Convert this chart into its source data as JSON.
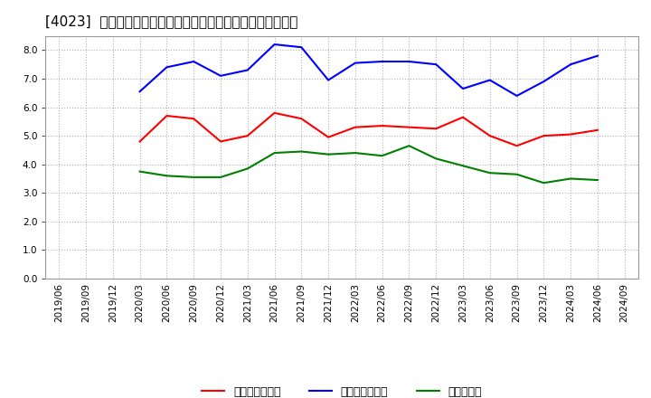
{
  "title": "[4023]  売上債権回転率、買入債務回転率、在庫回転率の推移",
  "x_labels": [
    "2019/06",
    "2019/09",
    "2019/12",
    "2020/03",
    "2020/06",
    "2020/09",
    "2020/12",
    "2021/03",
    "2021/06",
    "2021/09",
    "2021/12",
    "2022/03",
    "2022/06",
    "2022/09",
    "2022/12",
    "2023/03",
    "2023/06",
    "2023/09",
    "2023/12",
    "2024/03",
    "2024/06",
    "2024/09"
  ],
  "売上債権回転率": [
    null,
    null,
    null,
    4.8,
    5.7,
    5.6,
    4.8,
    5.0,
    5.8,
    5.6,
    4.95,
    5.3,
    5.35,
    5.3,
    5.25,
    5.65,
    5.0,
    4.65,
    5.0,
    5.05,
    5.2,
    null
  ],
  "買入債務回転率": [
    null,
    null,
    null,
    6.55,
    7.4,
    7.6,
    7.1,
    7.3,
    8.2,
    8.1,
    6.95,
    7.55,
    7.6,
    7.6,
    7.5,
    6.65,
    6.95,
    6.4,
    6.9,
    7.5,
    7.8,
    null
  ],
  "在庫回転率": [
    null,
    null,
    null,
    3.75,
    3.6,
    3.55,
    3.55,
    3.85,
    4.4,
    4.45,
    4.35,
    4.4,
    4.3,
    4.65,
    4.2,
    3.95,
    3.7,
    3.65,
    3.35,
    3.5,
    3.45,
    null
  ],
  "legend": [
    "売上債権回転率",
    "買入債務回転率",
    "在庫回転率"
  ],
  "legend_display": [
    "売上債権回転率",
    "買入債務回転率",
    "在庫回転率"
  ],
  "line_colors": [
    "#ff0000",
    "#0000ff",
    "#008000"
  ],
  "ylim": [
    0.0,
    8.5
  ],
  "yticks": [
    0.0,
    1.0,
    2.0,
    3.0,
    4.0,
    5.0,
    6.0,
    7.0,
    8.0
  ],
  "background_color": "#ffffff",
  "plot_bg_color": "#ffffff",
  "grid_color": "#b0b0b0",
  "title_fontsize": 11,
  "tick_fontsize": 7.5,
  "legend_fontsize": 9
}
